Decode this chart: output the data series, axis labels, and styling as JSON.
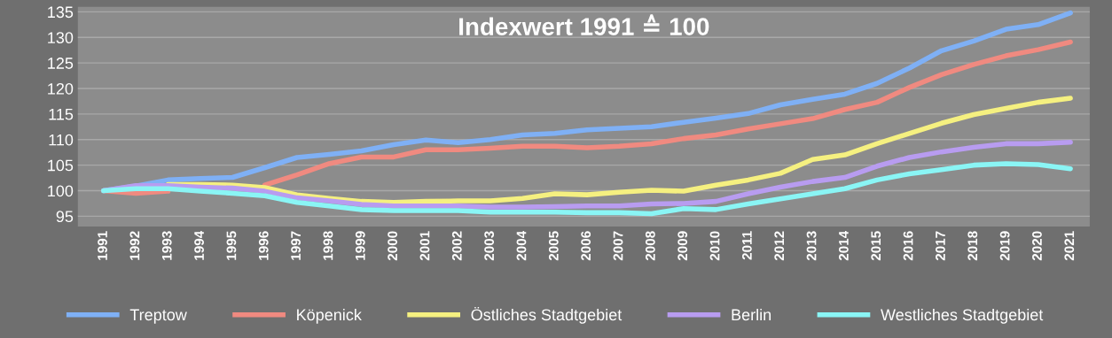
{
  "chart_data": {
    "type": "line",
    "title": "Indexwert 1991 ≙ 100",
    "categories": [
      "1991",
      "1992",
      "1993",
      "1994",
      "1995",
      "1996",
      "1997",
      "1998",
      "1999",
      "2000",
      "2001",
      "2002",
      "2003",
      "2004",
      "2005",
      "2006",
      "2007",
      "2008",
      "2009",
      "2010",
      "2011",
      "2012",
      "2013",
      "2014",
      "2015",
      "2016",
      "2017",
      "2018",
      "2019",
      "2020",
      "2021"
    ],
    "series": [
      {
        "name": "Treptow",
        "color": "#7fb0f5",
        "values": [
          100,
          100.9,
          102.1,
          102.4,
          102.6,
          104.5,
          106.5,
          107.1,
          107.8,
          109.0,
          109.9,
          109.4,
          110.0,
          110.9,
          111.2,
          111.9,
          112.2,
          112.5,
          113.4,
          114.2,
          115.1,
          116.8,
          117.9,
          118.9,
          121.0,
          124.0,
          127.4,
          129.3,
          131.6,
          132.5,
          134.8
        ]
      },
      {
        "name": "Köpenick",
        "color": "#f08a80",
        "values": [
          100,
          99.5,
          99.9,
          null,
          null,
          101.1,
          103.1,
          105.3,
          106.6,
          106.6,
          108.0,
          108.0,
          108.3,
          108.7,
          108.7,
          108.4,
          108.7,
          109.2,
          110.2,
          110.9,
          112.1,
          113.1,
          114.1,
          115.9,
          117.3,
          120.2,
          122.7,
          124.7,
          126.4,
          127.6,
          129.1
        ]
      },
      {
        "name": "Östliches Stadtgebiet",
        "color": "#f5f080",
        "values": [
          null,
          null,
          101.2,
          101.2,
          101.1,
          100.6,
          99.2,
          98.5,
          97.9,
          97.7,
          97.9,
          98.0,
          98.0,
          98.5,
          99.4,
          99.2,
          99.7,
          100.1,
          99.9,
          101.1,
          102.1,
          103.4,
          106.1,
          107.0,
          109.2,
          111.2,
          113.2,
          114.9,
          116.1,
          117.3,
          118.1
        ]
      },
      {
        "name": "Berlin",
        "color": "#b89cf0",
        "values": [
          100,
          101.0,
          101.0,
          100.7,
          100.5,
          99.9,
          98.6,
          98.0,
          97.3,
          97.0,
          97.0,
          97.0,
          96.8,
          96.8,
          96.9,
          97.0,
          97.0,
          97.4,
          97.5,
          97.9,
          99.4,
          100.7,
          101.8,
          102.6,
          104.8,
          106.5,
          107.6,
          108.5,
          109.2,
          109.2,
          109.5
        ]
      },
      {
        "name": "Westliches Stadtgebiet",
        "color": "#8af5f5",
        "values": [
          100,
          100.4,
          100.4,
          99.9,
          99.5,
          99.0,
          97.7,
          97.0,
          96.3,
          96.1,
          96.1,
          96.1,
          95.8,
          95.8,
          95.8,
          95.7,
          95.7,
          95.5,
          96.5,
          96.3,
          97.4,
          98.4,
          99.4,
          100.4,
          102.1,
          103.3,
          104.1,
          105.0,
          105.3,
          105.1,
          104.3
        ]
      }
    ],
    "ylim": [
      93,
      136
    ],
    "yticks": [
      95,
      100,
      105,
      110,
      115,
      120,
      125,
      130,
      135
    ],
    "grid": "y",
    "legend": "bottom",
    "marker": "none",
    "line_style": "solid"
  }
}
